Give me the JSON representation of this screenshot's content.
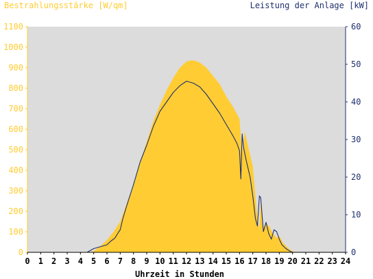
{
  "chart_data": {
    "type": "area",
    "left_axis_title": "Bestrahlungsstärke [W/qm]",
    "right_axis_title": "Leistung der Anlage [kW]",
    "xlabel": "Uhrzeit in Stunden",
    "x_range": [
      0,
      24
    ],
    "x_ticks": [
      "0",
      "1",
      "2",
      "3",
      "4",
      "5",
      "6",
      "7",
      "8",
      "9",
      "10",
      "11",
      "12",
      "13",
      "14",
      "15",
      "16",
      "17",
      "18",
      "19",
      "20",
      "21",
      "22",
      "23",
      "24"
    ],
    "left_range": [
      0,
      1100
    ],
    "left_ticks": [
      "0",
      "100",
      "200",
      "300",
      "400",
      "500",
      "600",
      "700",
      "800",
      "900",
      "1000",
      "1100"
    ],
    "right_range": [
      0,
      60
    ],
    "right_ticks": [
      "0",
      "10",
      "20",
      "30",
      "40",
      "50",
      "60"
    ],
    "grid": false,
    "colors": {
      "irradiance": "#FFCC33",
      "power": "#1F2F6E",
      "plot_bg": "#DCDCDC",
      "left_axis_text": "#FFCC33",
      "right_axis_text": "#1F2F6E"
    },
    "series": [
      {
        "axis": "left",
        "x": [
          0,
          4.5,
          5,
          5.5,
          6,
          6.5,
          7,
          7.5,
          8,
          8.5,
          9,
          9.5,
          10,
          10.5,
          11,
          11.5,
          12,
          12.3,
          12.6,
          13,
          13.5,
          14,
          14.5,
          15,
          15.5,
          16,
          16.2,
          16.4,
          16.5,
          16.7,
          17,
          17.3,
          17.5,
          17.6,
          17.8,
          18,
          18.2,
          18.5,
          18.8,
          19,
          19.3,
          19.6,
          19.9,
          20.2,
          20.5,
          24
        ],
        "values": [
          0,
          0,
          5,
          30,
          60,
          100,
          150,
          240,
          330,
          440,
          540,
          640,
          720,
          790,
          850,
          900,
          930,
          935,
          935,
          925,
          900,
          860,
          820,
          760,
          710,
          650,
          480,
          590,
          560,
          500,
          420,
          200,
          110,
          250,
          120,
          140,
          130,
          95,
          70,
          80,
          45,
          25,
          8,
          2,
          0,
          0
        ]
      },
      {
        "axis": "right",
        "x": [
          0,
          4.5,
          5,
          5.5,
          6,
          6.3,
          6.6,
          6.9,
          7,
          7.2,
          7.5,
          8,
          8.5,
          9,
          9.5,
          10,
          10.5,
          11,
          11.5,
          12,
          12.5,
          13,
          13.5,
          14,
          14.5,
          15,
          15.5,
          15.8,
          16,
          16.1,
          16.2,
          16.3,
          16.5,
          16.8,
          17,
          17.2,
          17.35,
          17.5,
          17.6,
          17.8,
          18,
          18.2,
          18.4,
          18.6,
          18.8,
          19,
          19.2,
          19.5,
          19.8,
          20,
          20.3,
          24
        ],
        "values": [
          0,
          0,
          1,
          1.5,
          2,
          3,
          3.8,
          5.5,
          6,
          9,
          12.5,
          18,
          24,
          28.5,
          33.5,
          37.5,
          40,
          42.5,
          44.3,
          45.5,
          45,
          44,
          42,
          39.5,
          37,
          34,
          31,
          29,
          27,
          19.5,
          31.5,
          28,
          24.5,
          20,
          15,
          9,
          7,
          15,
          14.5,
          5.5,
          8,
          5,
          3.5,
          6,
          5.5,
          3.5,
          2,
          1,
          0.3,
          0,
          0,
          0
        ]
      }
    ]
  }
}
